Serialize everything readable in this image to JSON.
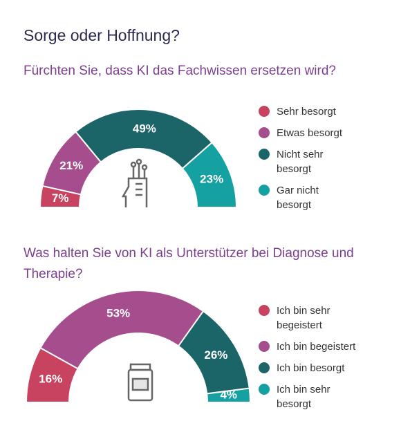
{
  "title": "Sorge oder Hoffnung?",
  "chart_data": [
    {
      "type": "half-donut",
      "title": "Fürchten Sie, dass KI das Fachwissen ersetzen wird?",
      "categories": [
        "Sehr besorgt",
        "Etwas besorgt",
        "Nicht sehr besorgt",
        "Gar nicht besorgt"
      ],
      "values": [
        7,
        21,
        49,
        23
      ],
      "value_labels": [
        "7%",
        "21%",
        "49%",
        "23%"
      ],
      "colors": [
        "#c8435f",
        "#a64d8e",
        "#1b6468",
        "#15a0a2"
      ]
    },
    {
      "type": "half-donut",
      "title": "Was halten Sie von KI als Unterstützer bei Diagnose und Therapie?",
      "categories": [
        "Ich bin sehr begeistert",
        "Ich bin begeistert",
        "Ich bin besorgt",
        "Ich bin sehr besorgt"
      ],
      "values": [
        16,
        53,
        26,
        4
      ],
      "value_labels": [
        "16%",
        "53%",
        "26%",
        "4%"
      ],
      "colors": [
        "#c8435f",
        "#a64d8e",
        "#1b6468",
        "#15a0a2"
      ]
    }
  ]
}
